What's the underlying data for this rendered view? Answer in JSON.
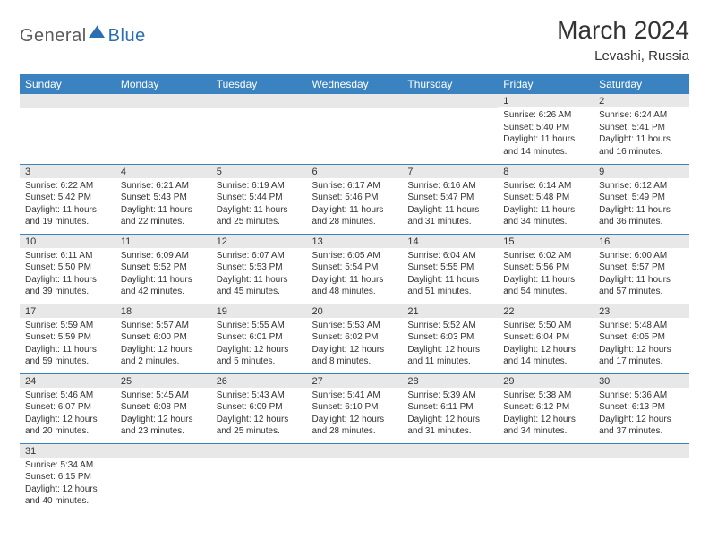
{
  "logo": {
    "text1": "General",
    "text2": "Blue"
  },
  "title": "March 2024",
  "location": "Levashi, Russia",
  "colors": {
    "header_bg": "#3b83c0",
    "header_fg": "#ffffff",
    "daynum_bg": "#e8e8e8",
    "rule": "#3b83c0",
    "logo_gray": "#5a5a5a",
    "logo_blue": "#2b6fb3"
  },
  "weekdays": [
    "Sunday",
    "Monday",
    "Tuesday",
    "Wednesday",
    "Thursday",
    "Friday",
    "Saturday"
  ],
  "weeks": [
    [
      null,
      null,
      null,
      null,
      null,
      {
        "n": "1",
        "sunrise": "6:26 AM",
        "sunset": "5:40 PM",
        "daylight": "11 hours and 14 minutes."
      },
      {
        "n": "2",
        "sunrise": "6:24 AM",
        "sunset": "5:41 PM",
        "daylight": "11 hours and 16 minutes."
      }
    ],
    [
      {
        "n": "3",
        "sunrise": "6:22 AM",
        "sunset": "5:42 PM",
        "daylight": "11 hours and 19 minutes."
      },
      {
        "n": "4",
        "sunrise": "6:21 AM",
        "sunset": "5:43 PM",
        "daylight": "11 hours and 22 minutes."
      },
      {
        "n": "5",
        "sunrise": "6:19 AM",
        "sunset": "5:44 PM",
        "daylight": "11 hours and 25 minutes."
      },
      {
        "n": "6",
        "sunrise": "6:17 AM",
        "sunset": "5:46 PM",
        "daylight": "11 hours and 28 minutes."
      },
      {
        "n": "7",
        "sunrise": "6:16 AM",
        "sunset": "5:47 PM",
        "daylight": "11 hours and 31 minutes."
      },
      {
        "n": "8",
        "sunrise": "6:14 AM",
        "sunset": "5:48 PM",
        "daylight": "11 hours and 34 minutes."
      },
      {
        "n": "9",
        "sunrise": "6:12 AM",
        "sunset": "5:49 PM",
        "daylight": "11 hours and 36 minutes."
      }
    ],
    [
      {
        "n": "10",
        "sunrise": "6:11 AM",
        "sunset": "5:50 PM",
        "daylight": "11 hours and 39 minutes."
      },
      {
        "n": "11",
        "sunrise": "6:09 AM",
        "sunset": "5:52 PM",
        "daylight": "11 hours and 42 minutes."
      },
      {
        "n": "12",
        "sunrise": "6:07 AM",
        "sunset": "5:53 PM",
        "daylight": "11 hours and 45 minutes."
      },
      {
        "n": "13",
        "sunrise": "6:05 AM",
        "sunset": "5:54 PM",
        "daylight": "11 hours and 48 minutes."
      },
      {
        "n": "14",
        "sunrise": "6:04 AM",
        "sunset": "5:55 PM",
        "daylight": "11 hours and 51 minutes."
      },
      {
        "n": "15",
        "sunrise": "6:02 AM",
        "sunset": "5:56 PM",
        "daylight": "11 hours and 54 minutes."
      },
      {
        "n": "16",
        "sunrise": "6:00 AM",
        "sunset": "5:57 PM",
        "daylight": "11 hours and 57 minutes."
      }
    ],
    [
      {
        "n": "17",
        "sunrise": "5:59 AM",
        "sunset": "5:59 PM",
        "daylight": "11 hours and 59 minutes."
      },
      {
        "n": "18",
        "sunrise": "5:57 AM",
        "sunset": "6:00 PM",
        "daylight": "12 hours and 2 minutes."
      },
      {
        "n": "19",
        "sunrise": "5:55 AM",
        "sunset": "6:01 PM",
        "daylight": "12 hours and 5 minutes."
      },
      {
        "n": "20",
        "sunrise": "5:53 AM",
        "sunset": "6:02 PM",
        "daylight": "12 hours and 8 minutes."
      },
      {
        "n": "21",
        "sunrise": "5:52 AM",
        "sunset": "6:03 PM",
        "daylight": "12 hours and 11 minutes."
      },
      {
        "n": "22",
        "sunrise": "5:50 AM",
        "sunset": "6:04 PM",
        "daylight": "12 hours and 14 minutes."
      },
      {
        "n": "23",
        "sunrise": "5:48 AM",
        "sunset": "6:05 PM",
        "daylight": "12 hours and 17 minutes."
      }
    ],
    [
      {
        "n": "24",
        "sunrise": "5:46 AM",
        "sunset": "6:07 PM",
        "daylight": "12 hours and 20 minutes."
      },
      {
        "n": "25",
        "sunrise": "5:45 AM",
        "sunset": "6:08 PM",
        "daylight": "12 hours and 23 minutes."
      },
      {
        "n": "26",
        "sunrise": "5:43 AM",
        "sunset": "6:09 PM",
        "daylight": "12 hours and 25 minutes."
      },
      {
        "n": "27",
        "sunrise": "5:41 AM",
        "sunset": "6:10 PM",
        "daylight": "12 hours and 28 minutes."
      },
      {
        "n": "28",
        "sunrise": "5:39 AM",
        "sunset": "6:11 PM",
        "daylight": "12 hours and 31 minutes."
      },
      {
        "n": "29",
        "sunrise": "5:38 AM",
        "sunset": "6:12 PM",
        "daylight": "12 hours and 34 minutes."
      },
      {
        "n": "30",
        "sunrise": "5:36 AM",
        "sunset": "6:13 PM",
        "daylight": "12 hours and 37 minutes."
      }
    ],
    [
      {
        "n": "31",
        "sunrise": "5:34 AM",
        "sunset": "6:15 PM",
        "daylight": "12 hours and 40 minutes."
      },
      null,
      null,
      null,
      null,
      null,
      null
    ]
  ],
  "labels": {
    "sunrise": "Sunrise:",
    "sunset": "Sunset:",
    "daylight": "Daylight:"
  }
}
